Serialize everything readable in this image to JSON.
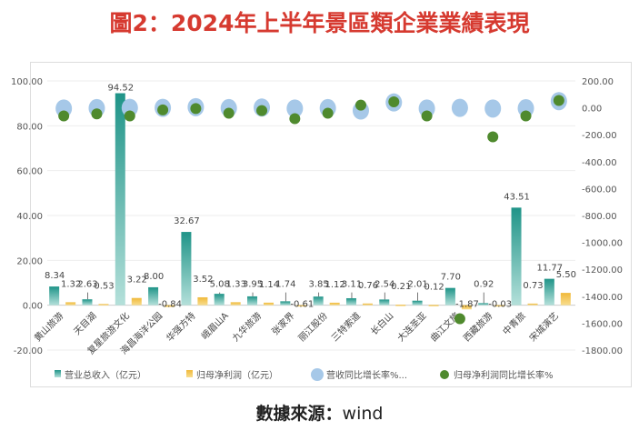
{
  "title": "圖2：2024年上半年景區類企業業績表現",
  "source_label": "數據來源：",
  "source_value": "wind",
  "chart_data": {
    "type": "bar+scatter",
    "categories": [
      "黄山旅游",
      "天目湖",
      "复星旅游文化",
      "海昌海洋公园",
      "华强方特",
      "峨眉山A",
      "九华旅游",
      "张家界",
      "丽江股份",
      "三特索道",
      "长白山",
      "大连圣亚",
      "曲江文旅",
      "西藏旅游",
      "中青旅",
      "宋城演艺"
    ],
    "series": [
      {
        "name": "营业总收入（亿元）",
        "type": "bar",
        "axis": "left",
        "color": "#3aa89a",
        "values": [
          8.34,
          2.63,
          94.52,
          8.0,
          32.67,
          5.08,
          3.95,
          1.74,
          3.85,
          3.11,
          2.54,
          2.01,
          7.7,
          0.92,
          43.51,
          11.77
        ]
      },
      {
        "name": "归母净利润（亿元）",
        "type": "bar",
        "axis": "left",
        "color": "#f2c14e",
        "values": [
          1.32,
          0.53,
          3.22,
          -0.84,
          3.52,
          1.33,
          1.14,
          -0.61,
          1.12,
          0.76,
          0.21,
          0.12,
          -1.87,
          -0.03,
          0.73,
          5.5
        ]
      },
      {
        "name": "营收同比增长率%...",
        "type": "scatter",
        "axis": "right",
        "color": "#a6c8e8",
        "values": [
          -5,
          -2,
          0,
          0,
          5,
          -2,
          2,
          -5,
          -2,
          -20,
          40,
          -5,
          0,
          -5,
          -3,
          50
        ]
      },
      {
        "name": "归母净利润同比增长率%",
        "type": "scatter",
        "axis": "right",
        "color": "#4f8a2e",
        "values": [
          -40,
          -25,
          -40,
          5,
          15,
          -20,
          0,
          -60,
          -20,
          40,
          65,
          -40,
          -1547,
          -195,
          -40,
          75
        ]
      }
    ],
    "left_axis": {
      "range": [
        -20,
        100
      ],
      "ticks": [
        "-20.00",
        "0.00",
        "20.00",
        "40.00",
        "60.00",
        "80.00",
        "100.00"
      ]
    },
    "right_axis": {
      "range": [
        -1800,
        200
      ],
      "ticks": [
        "200.00",
        "0.00",
        "-200.00",
        "-400.00",
        "-600.00",
        "-800.00",
        "-1000.00",
        "-1200.00",
        "-1400.00",
        "-1600.00",
        "-1800.00"
      ]
    },
    "grid": true,
    "legend": "bottom"
  }
}
